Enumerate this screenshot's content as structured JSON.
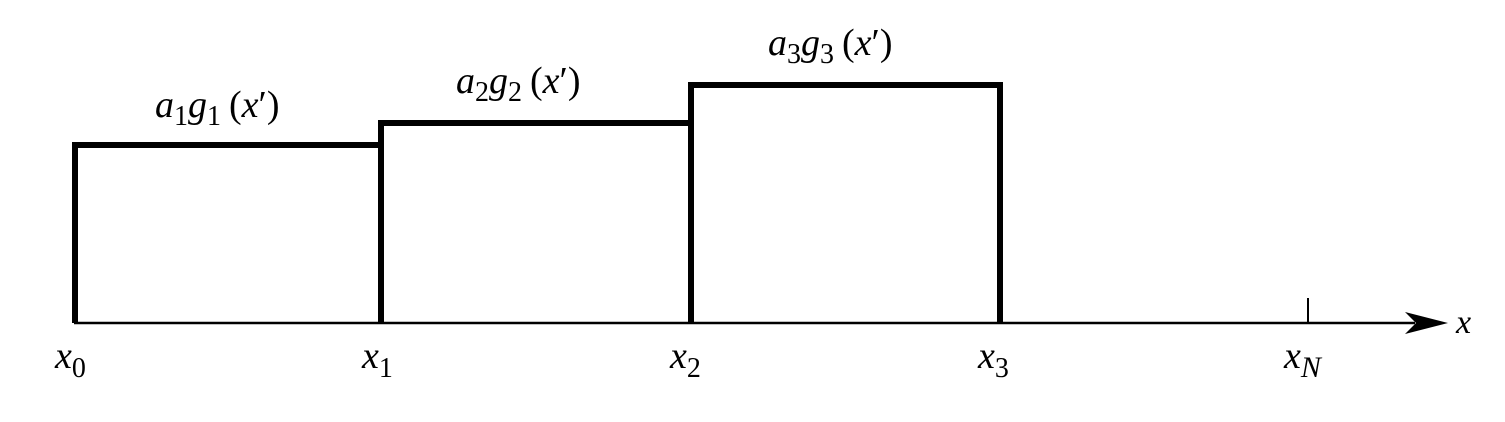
{
  "axis": {
    "label": "x",
    "color": "#000000"
  },
  "ticks": [
    {
      "base": "x",
      "sub": "0"
    },
    {
      "base": "x",
      "sub": "1"
    },
    {
      "base": "x",
      "sub": "2"
    },
    {
      "base": "x",
      "sub": "3"
    },
    {
      "base": "x",
      "sub": "N"
    }
  ],
  "steps": [
    {
      "coef": "a",
      "coef_sub": "1",
      "func": "g",
      "func_sub": "1",
      "arg": "x",
      "prime": "′"
    },
    {
      "coef": "a",
      "coef_sub": "2",
      "func": "g",
      "func_sub": "2",
      "arg": "x",
      "prime": "′"
    },
    {
      "coef": "a",
      "coef_sub": "3",
      "func": "g",
      "func_sub": "3",
      "arg": "x",
      "prime": "′"
    }
  ]
}
